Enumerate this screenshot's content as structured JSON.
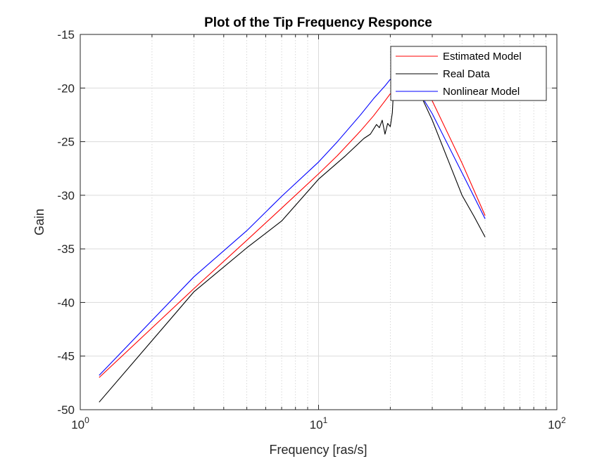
{
  "chart_data": {
    "type": "line",
    "title": "Plot of the Tip Frequency Responce",
    "xlabel": "Frequency [ras/s]",
    "ylabel": "Gain",
    "xscale": "log",
    "xlim": [
      1,
      100
    ],
    "ylim": [
      -50,
      -15
    ],
    "grid": true,
    "legend_position": "top-right",
    "xticks": [
      {
        "value": 1,
        "base": "10",
        "exp": "0"
      },
      {
        "value": 10,
        "base": "10",
        "exp": "1"
      },
      {
        "value": 100,
        "base": "10",
        "exp": "2"
      }
    ],
    "yticks": [
      -15,
      -20,
      -25,
      -30,
      -35,
      -40,
      -45,
      -50
    ],
    "series": [
      {
        "name": "Estimated Model",
        "color": "#ff0000",
        "points": [
          [
            1.2,
            -47.0
          ],
          [
            3.0,
            -38.7
          ],
          [
            5.0,
            -34.2
          ],
          [
            7.0,
            -31.2
          ],
          [
            10.0,
            -28.0
          ],
          [
            12.0,
            -26.3
          ],
          [
            15.0,
            -24.0
          ],
          [
            17.0,
            -22.6
          ],
          [
            19.0,
            -21.2
          ],
          [
            21.0,
            -19.9
          ],
          [
            22.0,
            -19.5
          ],
          [
            23.5,
            -19.6
          ],
          [
            25.0,
            -19.9
          ],
          [
            30.0,
            -21.2
          ],
          [
            40.0,
            -27.0
          ],
          [
            50.0,
            -31.9
          ]
        ]
      },
      {
        "name": "Real Data",
        "color": "#000000",
        "points": [
          [
            1.2,
            -49.3
          ],
          [
            3.0,
            -39.0
          ],
          [
            5.0,
            -34.9
          ],
          [
            7.0,
            -32.4
          ],
          [
            10.0,
            -28.5
          ],
          [
            13.0,
            -26.3
          ],
          [
            15.5,
            -24.7
          ],
          [
            16.5,
            -24.3
          ],
          [
            17.5,
            -23.4
          ],
          [
            18.0,
            -23.7
          ],
          [
            18.5,
            -23.0
          ],
          [
            19.0,
            -24.3
          ],
          [
            19.5,
            -23.3
          ],
          [
            20.0,
            -23.6
          ],
          [
            20.4,
            -22.3
          ],
          [
            20.8,
            -18.6
          ],
          [
            22.0,
            -18.5
          ],
          [
            24.0,
            -18.4
          ],
          [
            25.0,
            -19.2
          ],
          [
            30.0,
            -23.0
          ],
          [
            40.0,
            -30.0
          ],
          [
            45.0,
            -32.0
          ],
          [
            50.0,
            -33.9
          ]
        ]
      },
      {
        "name": "Nonlinear Model",
        "color": "#0000ff",
        "points": [
          [
            1.2,
            -46.8
          ],
          [
            3.0,
            -37.6
          ],
          [
            5.0,
            -33.3
          ],
          [
            7.0,
            -30.1
          ],
          [
            10.0,
            -26.9
          ],
          [
            12.0,
            -25.0
          ],
          [
            15.0,
            -22.5
          ],
          [
            17.0,
            -21.0
          ],
          [
            19.0,
            -19.8
          ],
          [
            21.0,
            -18.6
          ],
          [
            22.0,
            -18.3
          ],
          [
            23.0,
            -18.5
          ],
          [
            25.0,
            -19.5
          ],
          [
            30.0,
            -22.4
          ],
          [
            40.0,
            -27.9
          ],
          [
            50.0,
            -32.2
          ]
        ]
      }
    ]
  }
}
